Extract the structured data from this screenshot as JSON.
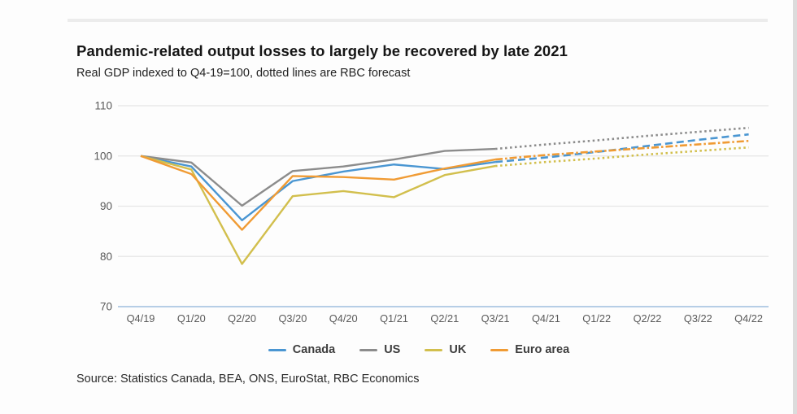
{
  "header": {
    "title": "Pandemic-related output losses to largely be recovered by late 2021",
    "subtitle": "Real GDP indexed to Q4-19=100, dotted lines are RBC forecast"
  },
  "source": "Source: Statistics Canada, BEA, ONS, EuroStat, RBC Economics",
  "chart_data": {
    "type": "line",
    "title": "Pandemic-related output losses to largely be recovered by late 2021",
    "subtitle": "Real GDP indexed to Q4-19=100, dotted lines are RBC forecast",
    "categories": [
      "Q4/19",
      "Q1/20",
      "Q2/20",
      "Q3/20",
      "Q4/20",
      "Q1/21",
      "Q2/21",
      "Q3/21",
      "Q4/21",
      "Q1/22",
      "Q2/22",
      "Q3/22",
      "Q4/22"
    ],
    "ylim": [
      70,
      110
    ],
    "yticks": [
      110,
      100,
      90,
      80,
      70
    ],
    "grid": "horizontal",
    "grid_color": "#e6e6e6",
    "baseline_color": "#9ebfde",
    "tick_label_color": "#595959",
    "legend_position": "bottom",
    "forecast_note": "dotted segments from Q3/21 onward are RBC forecast",
    "series": [
      {
        "name": "Canada",
        "color": "#4a96d2",
        "actual": [
          100,
          97.9,
          87.2,
          95.0,
          96.9,
          98.3,
          97.4,
          98.8
        ],
        "forecast": [
          98.8,
          99.7,
          100.8,
          102.0,
          103.2,
          104.3
        ],
        "dash": "9,5"
      },
      {
        "name": "US",
        "color": "#8c8c8c",
        "actual": [
          100,
          98.7,
          90.1,
          97.0,
          97.9,
          99.3,
          101.0,
          101.4
        ],
        "forecast": [
          101.4,
          102.3,
          103.1,
          104.0,
          104.8,
          105.6
        ],
        "dash": "2.5,3.5"
      },
      {
        "name": "UK",
        "color": "#d2bf4d",
        "actual": [
          100,
          97.3,
          78.5,
          92.0,
          93.0,
          91.8,
          96.2,
          98.0
        ],
        "forecast": [
          98.0,
          98.8,
          99.5,
          100.3,
          101.0,
          101.7
        ],
        "dash": "2.5,3.5"
      },
      {
        "name": "Euro area",
        "color": "#f09b34",
        "actual": [
          100,
          96.4,
          85.3,
          96.0,
          95.8,
          95.3,
          97.5,
          99.3
        ],
        "forecast": [
          99.3,
          100.2,
          100.9,
          101.6,
          102.3,
          103.0
        ],
        "dash": "9,3,2.5,3"
      }
    ]
  }
}
